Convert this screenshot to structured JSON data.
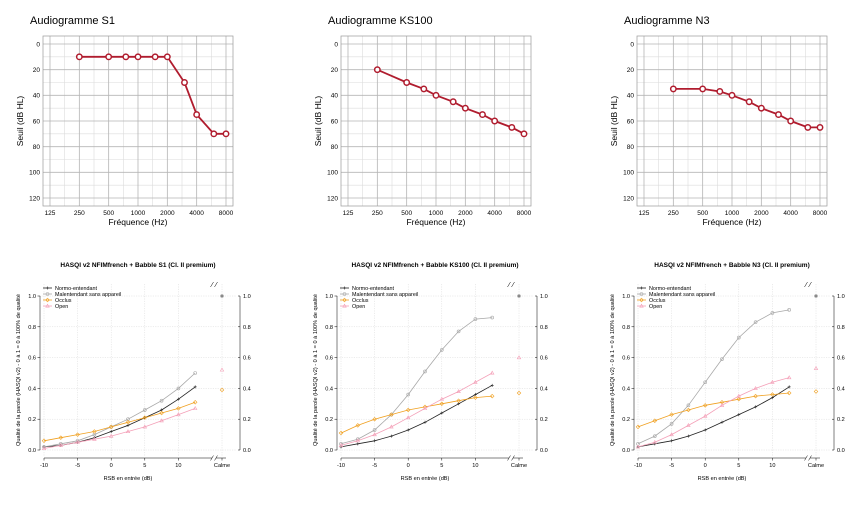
{
  "colors": {
    "audiogram_line": "#b01c2e",
    "grid_major": "#b5b5b5",
    "grid_minor": "#dcdcdc",
    "normo": "#222222",
    "malentendant": "#a8a8a8",
    "occlus": "#f0a020",
    "open": "#f4a0b8"
  },
  "chart_data": [
    {
      "type": "line",
      "title": "Audiogramme S1",
      "xlabel": "Fréquence (Hz)",
      "ylabel": "Seuil (dB HL)",
      "x_ticks": [
        "125",
        "250",
        "500",
        "1000",
        "2000",
        "4000",
        "8000"
      ],
      "y_ticks": [
        "0",
        "20",
        "40",
        "60",
        "80",
        "100",
        "120"
      ],
      "ylim": [
        0,
        120
      ],
      "x": [
        250,
        500,
        750,
        1000,
        1500,
        2000,
        3000,
        4000,
        6000,
        8000
      ],
      "values": [
        10,
        10,
        10,
        10,
        10,
        10,
        30,
        55,
        70,
        70
      ]
    },
    {
      "type": "line",
      "title": "Audiogramme KS100",
      "xlabel": "Fréquence (Hz)",
      "ylabel": "Seuil (dB HL)",
      "x_ticks": [
        "125",
        "250",
        "500",
        "1000",
        "2000",
        "4000",
        "8000"
      ],
      "y_ticks": [
        "0",
        "20",
        "40",
        "60",
        "80",
        "100",
        "120"
      ],
      "ylim": [
        0,
        120
      ],
      "x": [
        250,
        500,
        750,
        1000,
        1500,
        2000,
        3000,
        4000,
        6000,
        8000
      ],
      "values": [
        20,
        30,
        35,
        40,
        45,
        50,
        55,
        60,
        65,
        70
      ]
    },
    {
      "type": "line",
      "title": "Audiogramme N3",
      "xlabel": "Fréquence (Hz)",
      "ylabel": "Seuil (dB HL)",
      "x_ticks": [
        "125",
        "250",
        "500",
        "1000",
        "2000",
        "4000",
        "8000"
      ],
      "y_ticks": [
        "0",
        "20",
        "40",
        "60",
        "80",
        "100",
        "120"
      ],
      "ylim": [
        0,
        120
      ],
      "x": [
        250,
        500,
        750,
        1000,
        1500,
        2000,
        3000,
        4000,
        6000,
        8000
      ],
      "values": [
        35,
        35,
        37,
        40,
        45,
        50,
        55,
        60,
        65,
        65
      ]
    },
    {
      "type": "line",
      "title": "HASQI v2 NFIMfrench + Babble S1 (Cl. II premium)",
      "xlabel": "RSB en entrée (dB)",
      "ylabel": "Qualité de la parole (HASQI v2) - 0 à 1 = 0 à 100% de qualité",
      "x": [
        -10,
        -7.5,
        -5,
        -2.5,
        0,
        2.5,
        5,
        7.5,
        10,
        12.5
      ],
      "x_ticks": [
        "-10",
        "-5",
        "0",
        "5",
        "10",
        "Calme"
      ],
      "y_ticks": [
        "0.0",
        "0.2",
        "0.4",
        "0.6",
        "0.8",
        "1.0"
      ],
      "ylim": [
        0,
        1
      ],
      "series": [
        {
          "name": "Normo-entendant",
          "values": [
            0.02,
            0.03,
            0.05,
            0.08,
            0.12,
            0.16,
            0.21,
            0.26,
            0.33,
            0.41
          ],
          "calme": 1.0
        },
        {
          "name": "Malentendant sans appareil",
          "values": [
            0.02,
            0.04,
            0.06,
            0.1,
            0.15,
            0.2,
            0.26,
            0.32,
            0.4,
            0.5
          ],
          "calme": 1.0
        },
        {
          "name": "Occlus",
          "values": [
            0.06,
            0.08,
            0.1,
            0.12,
            0.15,
            0.18,
            0.21,
            0.24,
            0.27,
            0.31
          ],
          "calme": 0.39
        },
        {
          "name": "Open",
          "values": [
            0.01,
            0.03,
            0.05,
            0.07,
            0.09,
            0.12,
            0.15,
            0.19,
            0.23,
            0.27
          ],
          "calme": 0.52
        }
      ]
    },
    {
      "type": "line",
      "title": "HASQI v2 NFIMfrench + Babble KS100 (Cl. II premium)",
      "xlabel": "RSB en entrée (dB)",
      "ylabel": "Qualité de la parole (HASQI v2) - 0 à 1 = 0 à 100% de qualité",
      "x": [
        -10,
        -7.5,
        -5,
        -2.5,
        0,
        2.5,
        5,
        7.5,
        10,
        12.5
      ],
      "x_ticks": [
        "-10",
        "-5",
        "0",
        "5",
        "10",
        "Calme"
      ],
      "y_ticks": [
        "0.0",
        "0.2",
        "0.4",
        "0.6",
        "0.8",
        "1.0"
      ],
      "ylim": [
        0,
        1
      ],
      "series": [
        {
          "name": "Normo-entendant",
          "values": [
            0.02,
            0.04,
            0.06,
            0.09,
            0.13,
            0.18,
            0.24,
            0.3,
            0.36,
            0.42
          ],
          "calme": 1.0
        },
        {
          "name": "Malentendant sans appareil",
          "values": [
            0.04,
            0.07,
            0.13,
            0.23,
            0.36,
            0.51,
            0.65,
            0.77,
            0.85,
            0.86
          ],
          "calme": 1.0
        },
        {
          "name": "Occlus",
          "values": [
            0.11,
            0.16,
            0.2,
            0.23,
            0.26,
            0.28,
            0.3,
            0.32,
            0.34,
            0.35
          ],
          "calme": 0.37
        },
        {
          "name": "Open",
          "values": [
            0.03,
            0.06,
            0.1,
            0.15,
            0.21,
            0.27,
            0.33,
            0.38,
            0.44,
            0.5
          ],
          "calme": 0.6
        }
      ]
    },
    {
      "type": "line",
      "title": "HASQI v2 NFIMfrench + Babble N3 (Cl. II premium)",
      "xlabel": "RSB en entrée (dB)",
      "ylabel": "Qualité de la parole (HASQI v2) - 0 à 1 = 0 à 100% de qualité",
      "x": [
        -10,
        -7.5,
        -5,
        -2.5,
        0,
        2.5,
        5,
        7.5,
        10,
        12.5
      ],
      "x_ticks": [
        "-10",
        "-5",
        "0",
        "5",
        "10",
        "Calme"
      ],
      "y_ticks": [
        "0.0",
        "0.2",
        "0.4",
        "0.6",
        "0.8",
        "1.0"
      ],
      "ylim": [
        0,
        1
      ],
      "series": [
        {
          "name": "Normo-entendant",
          "values": [
            0.02,
            0.04,
            0.06,
            0.09,
            0.13,
            0.18,
            0.23,
            0.28,
            0.34,
            0.41
          ],
          "calme": 1.0
        },
        {
          "name": "Malentendant sans appareil",
          "values": [
            0.04,
            0.09,
            0.17,
            0.29,
            0.44,
            0.59,
            0.73,
            0.83,
            0.89,
            0.91
          ],
          "calme": 1.0
        },
        {
          "name": "Occlus",
          "values": [
            0.15,
            0.19,
            0.23,
            0.26,
            0.29,
            0.31,
            0.33,
            0.35,
            0.36,
            0.37
          ],
          "calme": 0.38
        },
        {
          "name": "Open",
          "values": [
            0.02,
            0.05,
            0.1,
            0.16,
            0.22,
            0.29,
            0.35,
            0.4,
            0.44,
            0.47
          ],
          "calme": 0.53
        }
      ]
    }
  ]
}
